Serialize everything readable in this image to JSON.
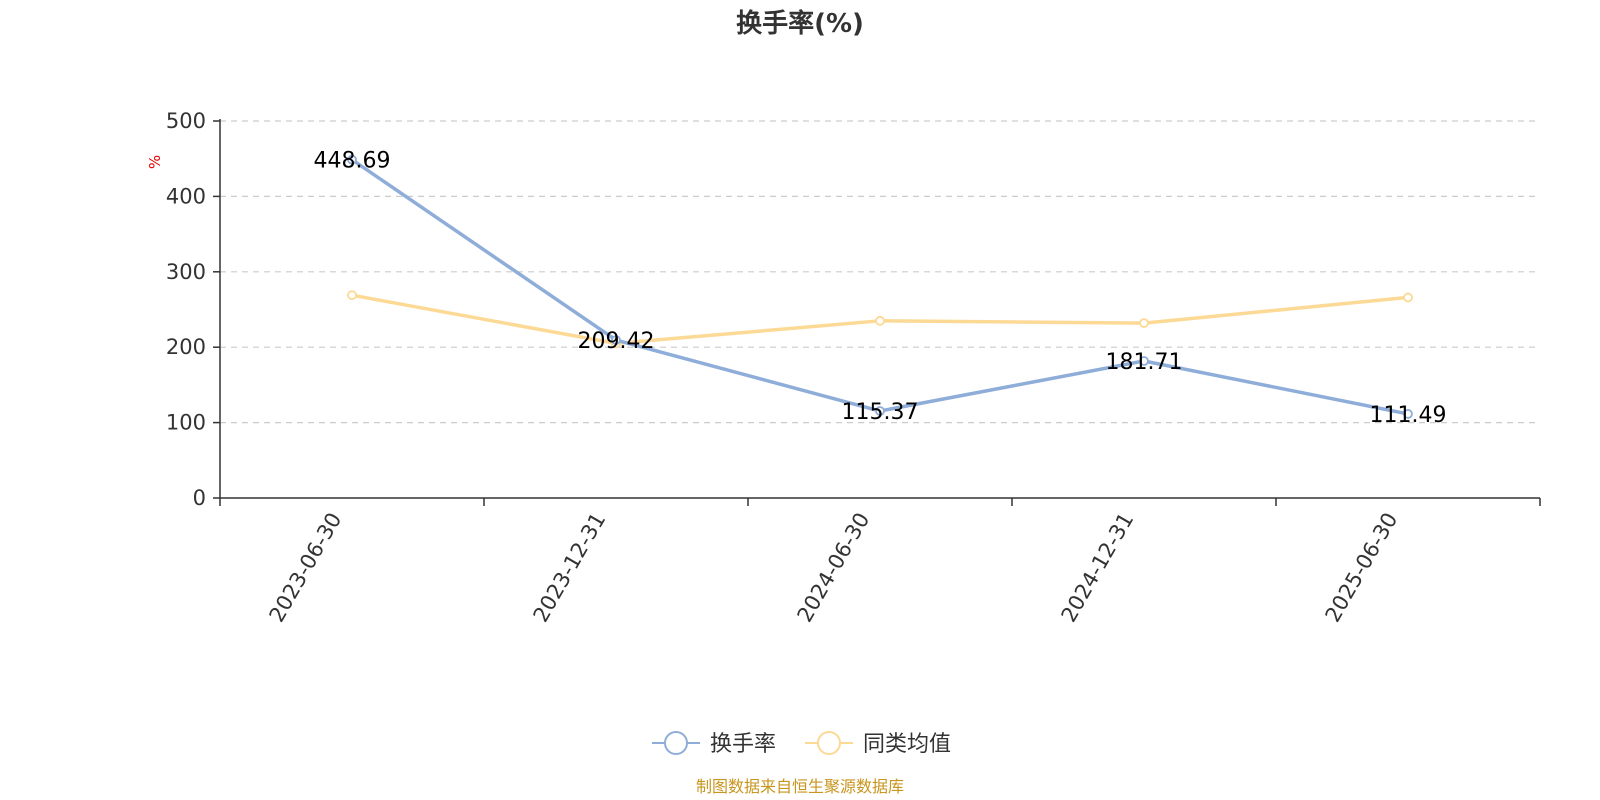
{
  "chart_data": {
    "type": "line",
    "title": "换手率(%)",
    "ylabel": "%",
    "xlabel": "",
    "x": [
      "2023-06-30",
      "2023-12-31",
      "2024-06-30",
      "2024-12-31",
      "2025-06-30"
    ],
    "ylim": [
      0,
      500
    ],
    "yticks": [
      0,
      100,
      200,
      300,
      400,
      500
    ],
    "grid": true,
    "legend_position": "bottom",
    "series": [
      {
        "name": "换手率",
        "color": "#8fadd9",
        "values": [
          448.69,
          209.42,
          115.37,
          181.71,
          111.49
        ],
        "show_labels": true
      },
      {
        "name": "同类均值",
        "color": "#fcd995",
        "values": [
          269,
          205,
          235,
          232,
          266
        ],
        "show_labels": false
      }
    ],
    "data_labels": [
      "448.69",
      "209.42",
      "115.37",
      "181.71",
      "111.49"
    ]
  },
  "footer": {
    "source": "制图数据来自恒生聚源数据库"
  },
  "colors": {
    "axis": "#333333",
    "grid": "#cccccc",
    "unit": "#e60000",
    "source": "#c8961e"
  }
}
